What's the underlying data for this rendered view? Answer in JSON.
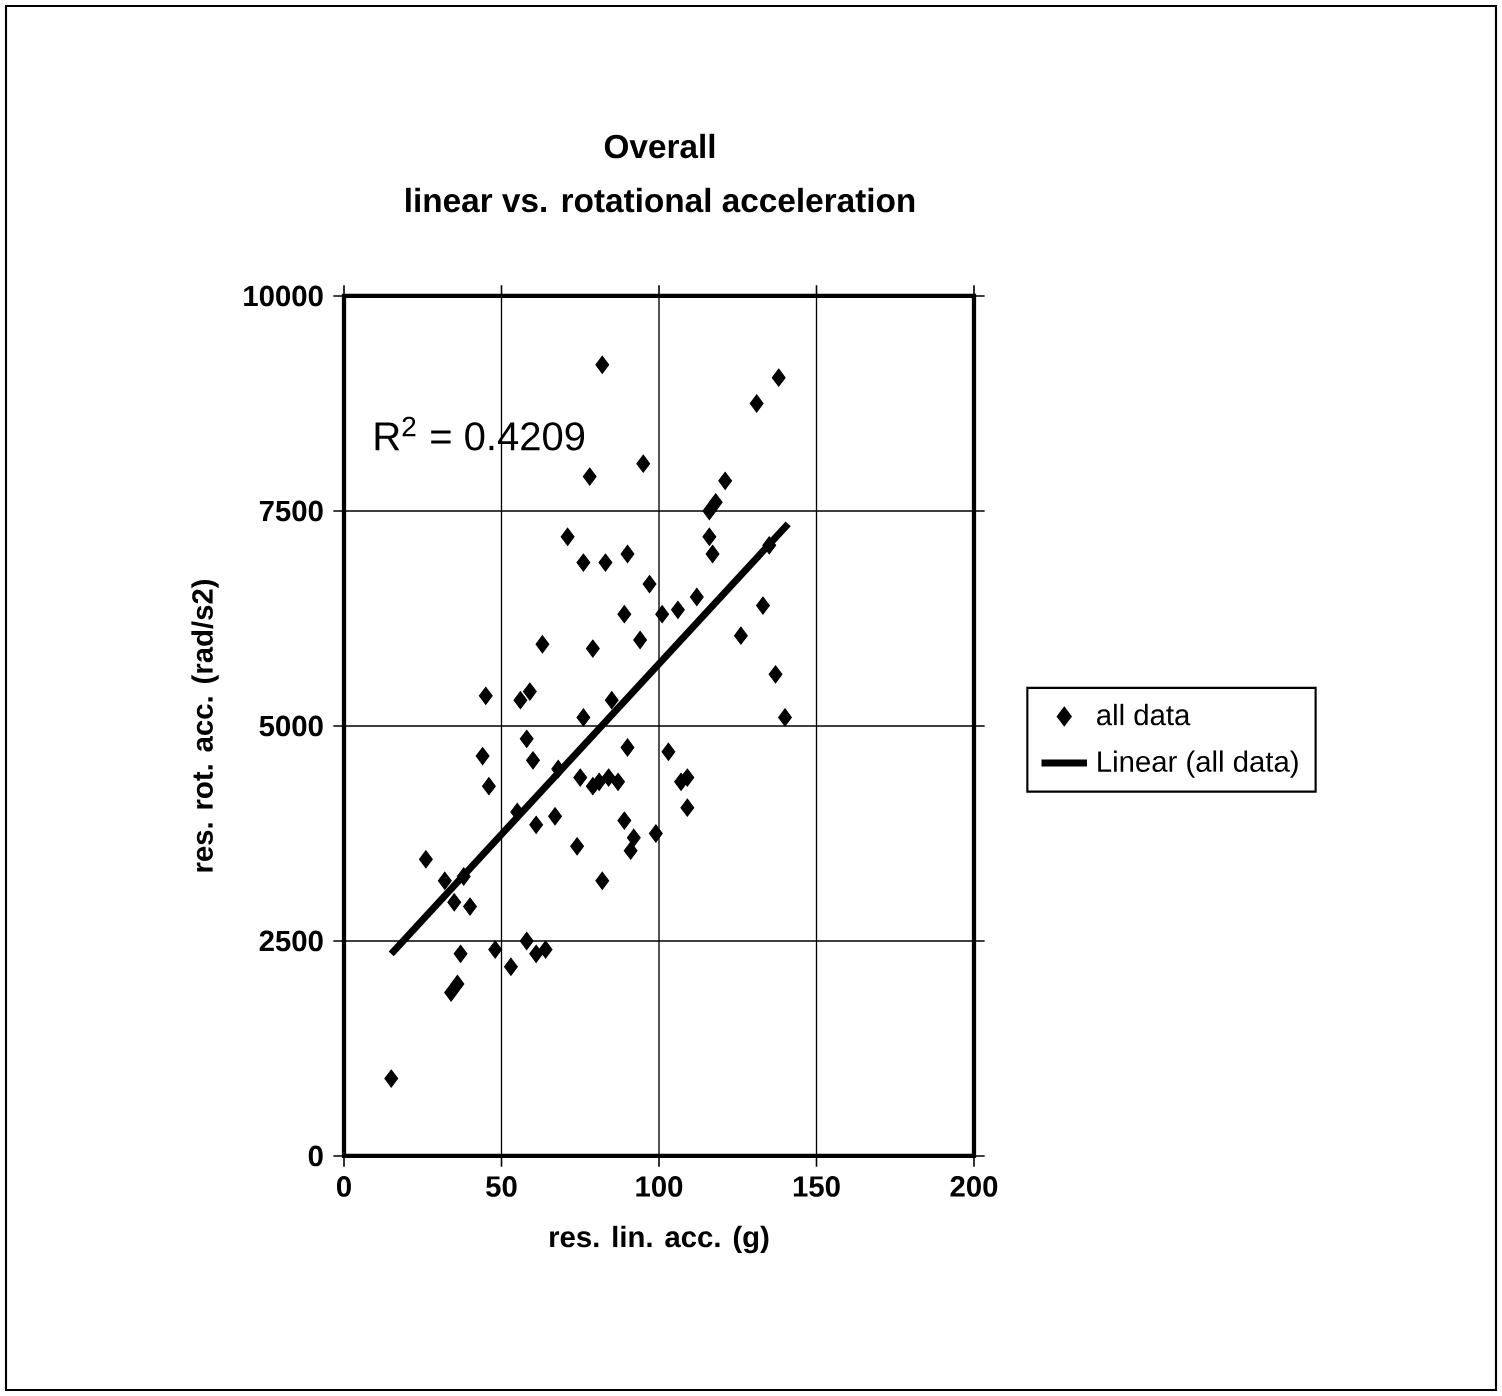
{
  "chart_data": {
    "type": "scatter",
    "title": "Overall",
    "subtitle": "linear vs. rotational acceleration",
    "xlabel": "res. lin. acc. (g)",
    "ylabel": "res. rot. acc. (rad/s2)",
    "xlim": [
      0,
      200
    ],
    "xticks": [
      0,
      50,
      100,
      150,
      200
    ],
    "ylim": [
      0,
      10000
    ],
    "yticks": [
      0,
      2500,
      5000,
      7500,
      10000
    ],
    "grid": true,
    "legend": "right",
    "annotations": [
      "R$^{2}$ = 0.4209"
    ],
    "series": [
      {
        "name": "all data",
        "marker": "diamond",
        "color": "#000000",
        "x": [
          15,
          26,
          32,
          34,
          35,
          36,
          37,
          38,
          40,
          44,
          45,
          46,
          48,
          53,
          55,
          56,
          58,
          58,
          59,
          60,
          61,
          61,
          63,
          64,
          67,
          68,
          71,
          74,
          75,
          76,
          76,
          78,
          79,
          79,
          81,
          82,
          82,
          83,
          84,
          85,
          87,
          89,
          89,
          90,
          90,
          91,
          92,
          94,
          95,
          97,
          99,
          101,
          103,
          106,
          107,
          109,
          109,
          112,
          116,
          116,
          117,
          118,
          121,
          126,
          131,
          133,
          135,
          137,
          138,
          140
        ],
        "values": [
          900,
          3450,
          3200,
          1900,
          2950,
          2000,
          2350,
          3250,
          2900,
          4650,
          5350,
          4300,
          2400,
          2200,
          4000,
          5300,
          4850,
          2500,
          5400,
          4600,
          2350,
          3850,
          5950,
          2400,
          3950,
          4500,
          7200,
          3600,
          4400,
          5100,
          6900,
          7900,
          5900,
          4300,
          4350,
          9200,
          3200,
          6900,
          4400,
          5300,
          4350,
          6300,
          3900,
          7000,
          4750,
          3550,
          3700,
          6000,
          8050,
          6650,
          3750,
          6300,
          4700,
          6350,
          4350,
          4050,
          4400,
          6500,
          7500,
          7200,
          7000,
          7600,
          7850,
          6050,
          8750,
          6400,
          7100,
          5600,
          9050,
          5100
        ]
      },
      {
        "name": "Linear (all data)",
        "type": "line",
        "marker": "none",
        "color": "#000000",
        "x": [
          15,
          141
        ],
        "values": [
          2350,
          7350
        ]
      }
    ]
  }
}
